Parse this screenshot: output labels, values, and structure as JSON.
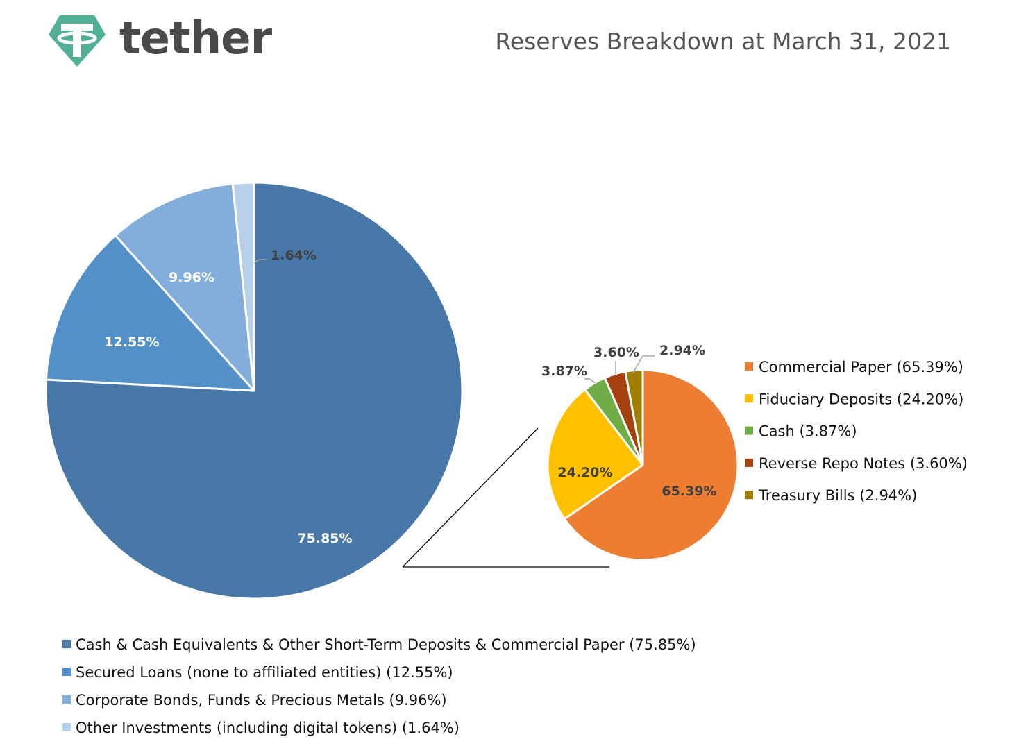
{
  "header": {
    "logo_text": "tether",
    "title": "Reserves Breakdown at March 31, 2021"
  },
  "colors": {
    "logo_teal": "#50AF95",
    "logo_text": "#4A4A4A",
    "connector": "#000000",
    "leader": "#A6A6A6"
  },
  "chart_data": [
    {
      "type": "pie",
      "series": [
        {
          "name": "Cash & Cash Equivalents & Other Short-Term Deposits & Commercial Paper (75.85%)",
          "value": 75.85,
          "label": "75.85%",
          "color": "#4878A8"
        },
        {
          "name": "Secured Loans (none to affiliated entities) (12.55%)",
          "value": 12.55,
          "label": "12.55%",
          "color": "#5390C8"
        },
        {
          "name": "Corporate Bonds, Funds & Precious Metals (9.96%)",
          "value": 9.96,
          "label": "9.96%",
          "color": "#83AEDC"
        },
        {
          "name": "Other Investments (including digital tokens) (1.64%)",
          "value": 1.64,
          "label": "1.64%",
          "color": "#B8CFE9"
        }
      ],
      "legend_position": "bottom"
    },
    {
      "type": "pie",
      "series": [
        {
          "name": "Commercial Paper (65.39%)",
          "value": 65.39,
          "label": "65.39%",
          "color": "#ED7D31"
        },
        {
          "name": "Fiduciary Deposits (24.20%)",
          "value": 24.2,
          "label": "24.20%",
          "color": "#FFC000"
        },
        {
          "name": "Cash (3.87%)",
          "value": 3.87,
          "label": "3.87%",
          "color": "#70AD47"
        },
        {
          "name": "Reverse Repo Notes (3.60%)",
          "value": 3.6,
          "label": "3.60%",
          "color": "#A5400F"
        },
        {
          "name": "Treasury Bills (2.94%)",
          "value": 2.94,
          "label": "2.94%",
          "color": "#A07F00"
        }
      ],
      "legend_position": "right"
    }
  ]
}
